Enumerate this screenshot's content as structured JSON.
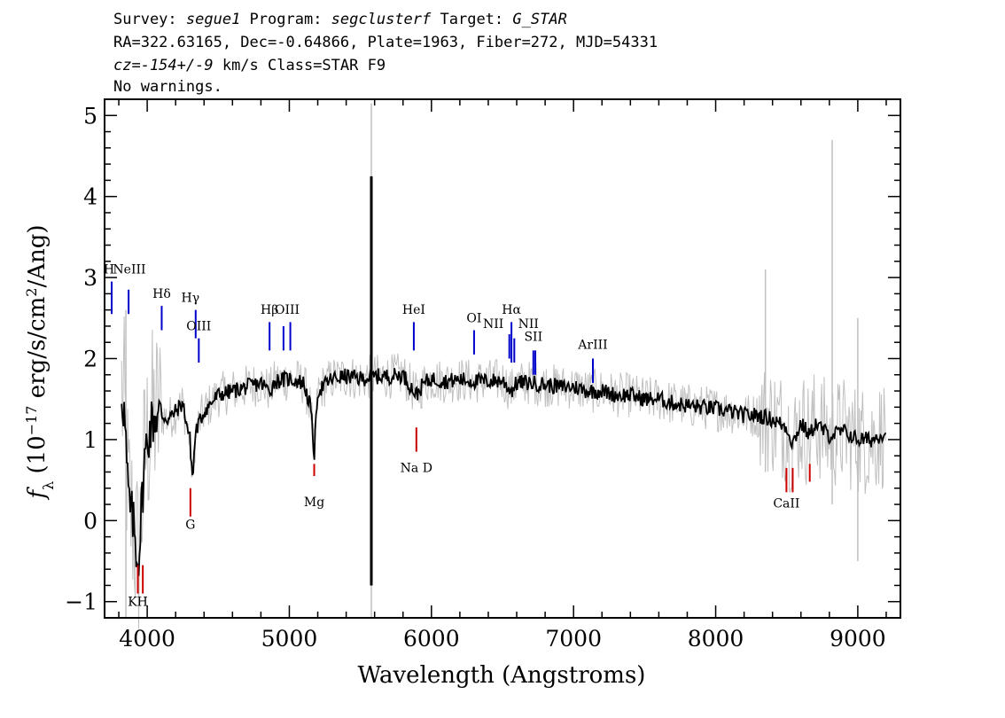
{
  "header": {
    "line1": [
      {
        "text": "Survey: ",
        "italic": false
      },
      {
        "text": "segue1",
        "italic": true
      },
      {
        "text": " Program: ",
        "italic": false
      },
      {
        "text": "segclusterf",
        "italic": true
      },
      {
        "text": " Target: ",
        "italic": false
      },
      {
        "text": "G_STAR",
        "italic": true
      }
    ],
    "line2": "RA=322.63165, Dec=-0.64866, Plate=1963, Fiber=272, MJD=54331",
    "line3": [
      {
        "text": "cz=-154+/-9",
        "italic": true
      },
      {
        "text": " km/s Class=STAR F9",
        "italic": false
      }
    ],
    "line4": "No warnings."
  },
  "chart_data": {
    "type": "line",
    "xlabel": "Wavelength (Angstroms)",
    "ylabel": "f_λ (10^-17 erg/s/cm^2/Ang)",
    "ylabel_parts": [
      {
        "text": "f",
        "italic": true
      },
      {
        "text": "λ",
        "sub": true
      },
      {
        "text": " (10"
      },
      {
        "text": "−17",
        "sup": true
      },
      {
        "text": " erg/s/cm"
      },
      {
        "text": "2",
        "sup": true
      },
      {
        "text": "/Ang)"
      }
    ],
    "xlim": [
      3700,
      9300
    ],
    "ylim": [
      -1.2,
      5.2
    ],
    "xticks": [
      4000,
      5000,
      6000,
      7000,
      8000,
      9000
    ],
    "yticks": [
      -1,
      0,
      1,
      2,
      3,
      4,
      5
    ],
    "ytick_labels": [
      "−1",
      "0",
      "1",
      "2",
      "3",
      "4",
      "5"
    ],
    "colors": {
      "flux": "#000000",
      "error": "#c0c0c0",
      "emission": "#0000cc",
      "absorption": "#cc0000"
    },
    "series": [
      {
        "role": "smoothed flux",
        "x": [
          3820,
          3840,
          3860,
          3880,
          3900,
          3920,
          3935,
          3950,
          3965,
          3980,
          4000,
          4030,
          4060,
          4100,
          4150,
          4200,
          4250,
          4300,
          4320,
          4340,
          4400,
          4500,
          4600,
          4700,
          4800,
          4861,
          4900,
          5000,
          5100,
          5150,
          5175,
          5200,
          5300,
          5400,
          5500,
          5600,
          5700,
          5800,
          5893,
          5950,
          6000,
          6100,
          6200,
          6300,
          6400,
          6500,
          6563,
          6600,
          6700,
          6800,
          6900,
          7000,
          7100,
          7200,
          7300,
          7400,
          7500,
          7600,
          7700,
          7800,
          7900,
          8000,
          8100,
          8200,
          8300,
          8400,
          8500,
          8542,
          8600,
          8662,
          8700,
          8800,
          8900,
          9000,
          9100,
          9200
        ],
        "y": [
          1.6,
          1.3,
          0.5,
          0.1,
          0.0,
          -0.3,
          -0.5,
          -0.2,
          0.3,
          0.7,
          1.0,
          1.2,
          1.3,
          1.3,
          1.25,
          1.35,
          1.45,
          1.0,
          0.5,
          1.1,
          1.35,
          1.55,
          1.6,
          1.65,
          1.7,
          1.6,
          1.72,
          1.75,
          1.7,
          1.4,
          0.8,
          1.6,
          1.75,
          1.78,
          1.75,
          1.78,
          1.78,
          1.8,
          1.55,
          1.7,
          1.75,
          1.72,
          1.74,
          1.72,
          1.72,
          1.73,
          1.6,
          1.7,
          1.7,
          1.68,
          1.65,
          1.65,
          1.6,
          1.6,
          1.55,
          1.55,
          1.5,
          1.5,
          1.45,
          1.42,
          1.4,
          1.38,
          1.35,
          1.3,
          1.3,
          1.25,
          1.15,
          0.95,
          1.2,
          1.05,
          1.2,
          1.05,
          1.1,
          1.0,
          1.0,
          1.1
        ]
      },
      {
        "role": "spike",
        "x": [
          5577,
          5577
        ],
        "y": [
          -0.8,
          4.25
        ]
      }
    ],
    "line_markers": [
      {
        "label": "H",
        "wavelength": 3750,
        "type": "emission"
      },
      {
        "label": "NeIII",
        "wavelength": 3869,
        "type": "emission"
      },
      {
        "label": "Hδ",
        "wavelength": 4102,
        "type": "emission"
      },
      {
        "label": "Hγ",
        "wavelength": 4341,
        "type": "emission"
      },
      {
        "label": "OIII",
        "wavelength": 4363,
        "type": "emission"
      },
      {
        "label": "Hβ",
        "wavelength": 4861,
        "type": "emission"
      },
      {
        "label": "OIII",
        "wavelength": 4959,
        "type": "emission"
      },
      {
        "label": "OIII",
        "wavelength": 5007,
        "type": "emission"
      },
      {
        "label": "HeI",
        "wavelength": 5876,
        "type": "emission"
      },
      {
        "label": "OI",
        "wavelength": 6300,
        "type": "emission"
      },
      {
        "label": "NII",
        "wavelength": 6548,
        "type": "emission"
      },
      {
        "label": "Hα",
        "wavelength": 6563,
        "type": "emission"
      },
      {
        "label": "NII",
        "wavelength": 6583,
        "type": "emission"
      },
      {
        "label": "SII",
        "wavelength": 6717,
        "type": "emission"
      },
      {
        "label": "SII",
        "wavelength": 6731,
        "type": "emission"
      },
      {
        "label": "ArIII",
        "wavelength": 7136,
        "type": "emission"
      },
      {
        "label": "KH",
        "wavelength": 3934,
        "type": "absorption"
      },
      {
        "label": "",
        "wavelength": 3969,
        "type": "absorption"
      },
      {
        "label": "G",
        "wavelength": 4304,
        "type": "absorption"
      },
      {
        "label": "Mg",
        "wavelength": 5175,
        "type": "absorption"
      },
      {
        "label": "Na D",
        "wavelength": 5894,
        "type": "absorption"
      },
      {
        "label": "CaII",
        "wavelength": 8498,
        "type": "absorption"
      },
      {
        "label": "",
        "wavelength": 8542,
        "type": "absorption"
      },
      {
        "label": "",
        "wavelength": 8662,
        "type": "absorption"
      }
    ]
  }
}
